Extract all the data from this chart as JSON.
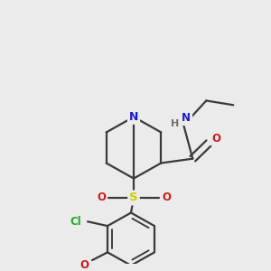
{
  "bg_color": "#ebebeb",
  "bond_color": "#3a3a3a",
  "bond_width": 1.6,
  "atom_colors": {
    "N": "#1a1acc",
    "O": "#cc1a1a",
    "S": "#cccc00",
    "Cl": "#22aa22",
    "H": "#707070",
    "C": "#3a3a3a"
  },
  "font_size": 8.5
}
